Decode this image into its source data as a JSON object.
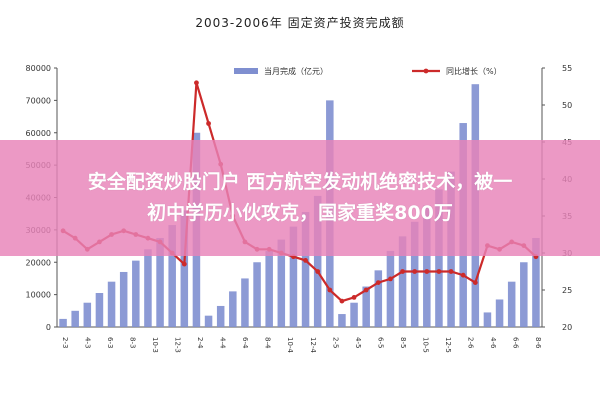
{
  "chart_data": {
    "type": "bar+line",
    "title": "2003-2006年 固定资产投资完成额",
    "legend": {
      "bar_label": "当月完成（亿元）",
      "line_label": "同比增长（%）",
      "placement": "top"
    },
    "y_left": {
      "min": 0,
      "max": 80000,
      "ticks": [
        "0",
        "10000",
        "20000",
        "30000",
        "40000",
        "50000",
        "60000",
        "70000",
        "80000"
      ]
    },
    "y_right": {
      "min": 20,
      "max": 55,
      "ticks": [
        "20",
        "25",
        "30",
        "35",
        "40",
        "45",
        "50",
        "55"
      ]
    },
    "grid": false,
    "x_labels": [
      "2-3",
      "4-3",
      "6-3",
      "8-3",
      "10-3",
      "12-3",
      "2-4",
      "4-4",
      "6-4",
      "8-4",
      "10-4",
      "12-4",
      "2-5",
      "4-5",
      "6-5",
      "8-5",
      "10-5",
      "12-5",
      "2-6",
      "4-6",
      "6-6",
      "8-6"
    ],
    "x_labels_full": [
      "2003-02",
      "2003-03",
      "2003-04",
      "2003-05",
      "2003-06",
      "2003-07",
      "2003-08",
      "2003-09",
      "2003-10",
      "2003-11",
      "2003-12",
      "2004-02",
      "2004-03",
      "2004-04",
      "2004-05",
      "2004-06",
      "2004-07",
      "2004-08",
      "2004-09",
      "2004-10",
      "2004-11",
      "2004-12",
      "2005-02",
      "2005-03",
      "2005-04",
      "2005-05",
      "2005-06",
      "2005-07",
      "2005-08",
      "2005-09",
      "2005-10",
      "2005-11",
      "2005-12",
      "2006-02",
      "2006-03",
      "2006-04",
      "2006-05",
      "2006-06",
      "2006-07",
      "2006-08"
    ],
    "series": [
      {
        "name": "当月完成（亿元）",
        "type": "bar",
        "color": "#7f8fd0",
        "values": [
          2500,
          5000,
          7500,
          10500,
          14000,
          17000,
          20500,
          24000,
          27500,
          31500,
          36000,
          60000,
          3500,
          6500,
          11000,
          15000,
          20000,
          23500,
          27000,
          31000,
          35500,
          40500,
          70000,
          4000,
          7500,
          12500,
          17500,
          23500,
          28000,
          32500,
          37500,
          42500,
          48000,
          63000,
          75000,
          4500,
          8500,
          14000,
          20000,
          27500
        ]
      },
      {
        "name": "同比增长（%）",
        "type": "line",
        "color": "#cc2a2a",
        "values": [
          33.0,
          32.0,
          30.5,
          31.5,
          32.5,
          33.0,
          32.5,
          32.0,
          31.5,
          30.0,
          28.5,
          53.0,
          47.5,
          42.0,
          35.0,
          31.5,
          30.5,
          30.5,
          30.0,
          29.5,
          29.0,
          27.5,
          25.0,
          23.5,
          24.0,
          25.0,
          26.0,
          26.5,
          27.5,
          27.5,
          27.5,
          27.5,
          27.5,
          27.0,
          26.0,
          31.0,
          30.5,
          31.5,
          31.0,
          29.5
        ]
      }
    ]
  },
  "banner": {
    "line1": "安全配资炒股门户 西方航空发动机绝密技术，被一",
    "line2": "初中学历小伙攻克，国家重奖800万"
  }
}
